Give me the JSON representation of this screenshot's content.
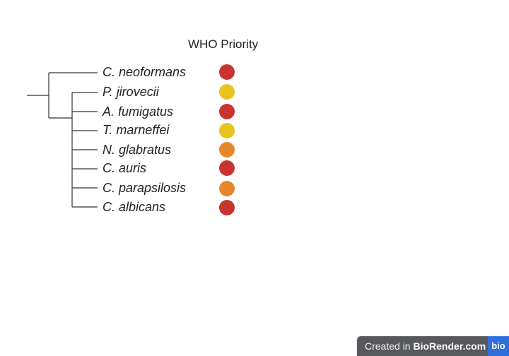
{
  "header": {
    "title": "WHO Priority"
  },
  "colors": {
    "critical": "#c8342f",
    "high": "#e5882c",
    "medium": "#e8c320",
    "line": "#333333"
  },
  "species": [
    {
      "name": "C. neoformans",
      "priority": "critical"
    },
    {
      "name": "P. jirovecii",
      "priority": "medium"
    },
    {
      "name": "A. fumigatus",
      "priority": "critical"
    },
    {
      "name": "T. marneffei",
      "priority": "medium"
    },
    {
      "name": "N. glabratus",
      "priority": "high"
    },
    {
      "name": "C. auris",
      "priority": "critical"
    },
    {
      "name": "C. parapsilosis",
      "priority": "high"
    },
    {
      "name": "C. albicans",
      "priority": "critical"
    }
  ],
  "footer": {
    "created_prefix": "Created in ",
    "brand": "BioRender.com",
    "logo_text": "bio"
  }
}
